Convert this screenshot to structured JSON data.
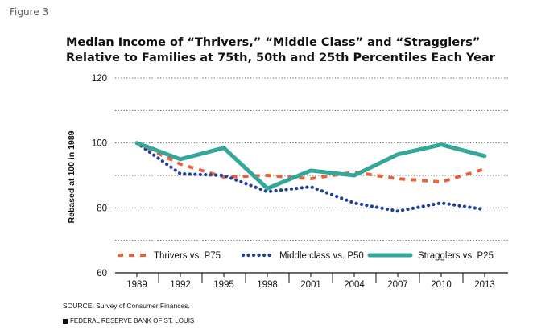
{
  "figure_label": "Figure 3",
  "title_lines": [
    "Median Income of “Thrivers,” “Middle Class” and “Stragglers”",
    "Relative to Families at 75th, 50th and 25th Percentiles Each Year"
  ],
  "source": "SOURCE: Survey of Consumer Finances.",
  "publisher": "FEDERAL RESERVE BANK OF ST. LOUIS",
  "colors": {
    "thrivers": "#e8623a",
    "middle": "#1f3f9a",
    "stragglers": "#35a79a",
    "grid": "#555555"
  },
  "chart_data": {
    "type": "line",
    "title": "Median Income of “Thrivers,” “Middle Class” and “Stragglers” Relative to Families at 75th, 50th and 25th Percentiles Each Year",
    "xlabel": "",
    "ylabel": "Rebased at 100 in 1989",
    "categories": [
      "1989",
      "1992",
      "1995",
      "1998",
      "2001",
      "2004",
      "2007",
      "2010",
      "2013"
    ],
    "ylim": [
      60,
      120
    ],
    "yticks": [
      60,
      80,
      100,
      120
    ],
    "grid": true,
    "legend_position": "bottom",
    "series": [
      {
        "name": "Thrivers vs. P75",
        "key": "thrivers",
        "style": "dashed",
        "values": [
          100,
          93.5,
          89.5,
          90,
          89,
          91,
          89,
          88,
          92
        ]
      },
      {
        "name": "Middle class vs. P50",
        "key": "middle",
        "style": "dotted",
        "values": [
          100,
          90.5,
          90,
          85,
          86.5,
          81.5,
          79,
          81.5,
          79.5
        ]
      },
      {
        "name": "Stragglers vs. P25",
        "key": "stragglers",
        "style": "solid",
        "values": [
          100,
          95,
          98.5,
          86,
          91.5,
          90,
          96.5,
          99.5,
          96
        ]
      }
    ]
  }
}
